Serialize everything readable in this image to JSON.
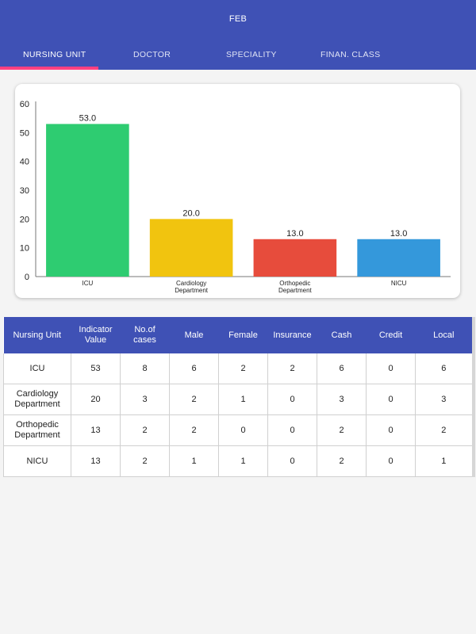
{
  "app_bar": {
    "title": "FEB",
    "tabs": [
      {
        "label": "NURSING UNIT",
        "active": true
      },
      {
        "label": "DOCTOR",
        "active": false
      },
      {
        "label": "SPECIALITY",
        "active": false
      },
      {
        "label": "FINAN. CLASS",
        "active": false
      }
    ],
    "color": "#3f51b5",
    "indicator_color": "#ff4081"
  },
  "chart_data": {
    "type": "bar",
    "categories": [
      "ICU",
      "Cardiology\nDepartment",
      "Orthopedic\nDepartment",
      "NICU"
    ],
    "values": [
      53.0,
      20.0,
      13.0,
      13.0
    ],
    "value_labels": [
      "53.0",
      "20.0",
      "13.0",
      "13.0"
    ],
    "colors": [
      "#2ecc71",
      "#f1c40f",
      "#e74c3c",
      "#3498db"
    ],
    "ylim": [
      0,
      60
    ],
    "yticks": [
      0,
      10,
      20,
      30,
      40,
      50,
      60
    ],
    "grid": false,
    "legend": "none"
  },
  "table": {
    "headers": [
      "Nursing Unit",
      "Indicator\nValue",
      "No.of cases",
      "Male",
      "Female",
      "Insurance",
      "Cash",
      "Credit",
      "Local"
    ],
    "rows": [
      [
        "ICU",
        "53",
        "8",
        "6",
        "2",
        "2",
        "6",
        "0",
        "6"
      ],
      [
        "Cardiology\nDepartment",
        "20",
        "3",
        "2",
        "1",
        "0",
        "3",
        "0",
        "3"
      ],
      [
        "Orthopedic\nDepartment",
        "13",
        "2",
        "2",
        "0",
        "0",
        "2",
        "0",
        "2"
      ],
      [
        "NICU",
        "13",
        "2",
        "1",
        "1",
        "0",
        "2",
        "0",
        "1"
      ]
    ]
  }
}
